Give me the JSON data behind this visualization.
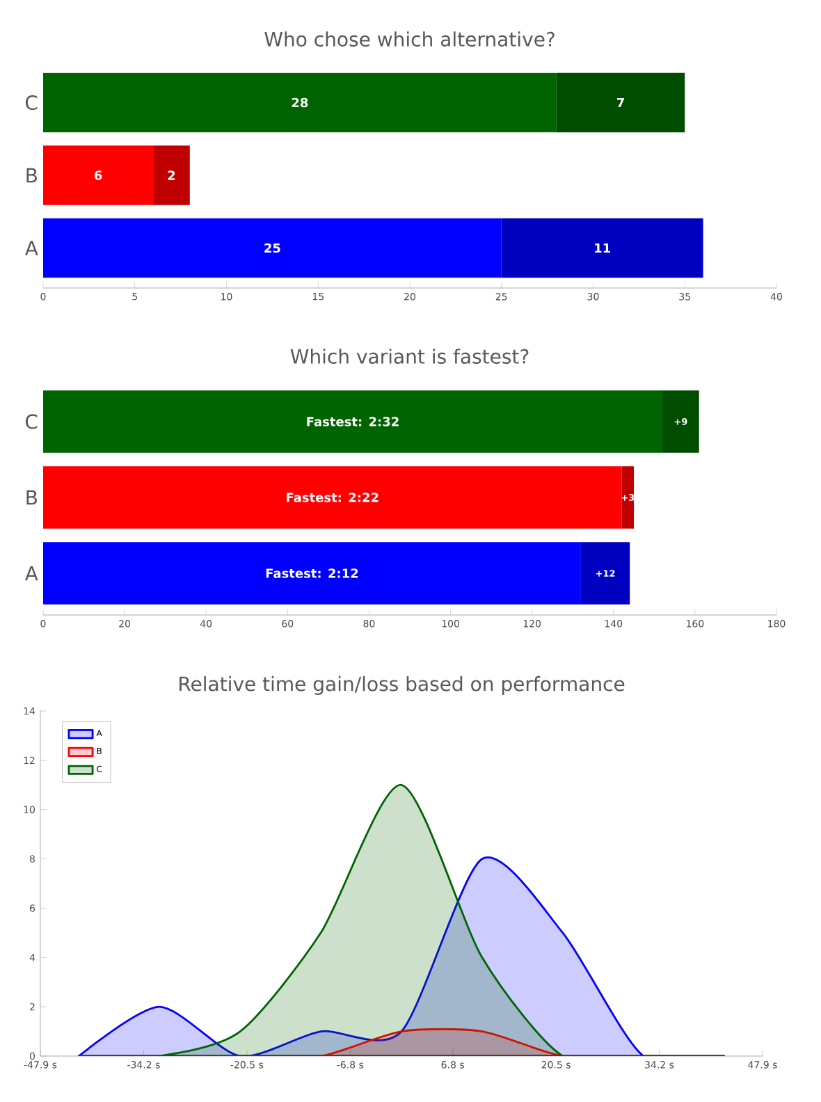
{
  "chart_data": [
    {
      "type": "bar",
      "title": "Who chose which alternative?",
      "orientation": "horizontal",
      "stacked": true,
      "data_labels": true,
      "categories": [
        "C",
        "B",
        "A"
      ],
      "series": [
        {
          "colors": [
            "#006400",
            "#ff0000",
            "#0000ff"
          ],
          "values": [
            28,
            6,
            25
          ]
        },
        {
          "colors": [
            "#004d00",
            "#c00000",
            "#0000c0"
          ],
          "values": [
            7,
            2,
            11
          ]
        }
      ],
      "xlim": [
        0,
        40
      ],
      "xticks": [
        0,
        5,
        10,
        15,
        20,
        25,
        30,
        35,
        40
      ]
    },
    {
      "type": "bar",
      "title": "Which variant is fastest?",
      "orientation": "horizontal",
      "stacked": true,
      "categories": [
        "C",
        "B",
        "A"
      ],
      "series": [
        {
          "colors": [
            "#006400",
            "#ff0000",
            "#0000ff"
          ],
          "values": [
            152,
            142,
            132
          ],
          "value_labels": [
            "Fastest: 2:32",
            "Fastest: 2:22",
            "Fastest: 2:12"
          ]
        },
        {
          "colors": [
            "#004d00",
            "#c00000",
            "#0000c0"
          ],
          "values": [
            9,
            3,
            12
          ],
          "value_labels": [
            "+9",
            "+3",
            "+12"
          ]
        }
      ],
      "xlim": [
        0,
        180
      ],
      "xticks": [
        0,
        20,
        40,
        60,
        80,
        100,
        120,
        140,
        160,
        180
      ]
    },
    {
      "type": "area",
      "title": "Relative time gain/loss based on performance",
      "legend": "top left",
      "marker": "none",
      "x": [
        -42.8,
        -32.1,
        -21.4,
        -10.7,
        0,
        10.7,
        21.4,
        32.1,
        42.8
      ],
      "series": [
        {
          "name": "A",
          "color": "#0000ff",
          "values": [
            0,
            2,
            0,
            1,
            1,
            8,
            5,
            0,
            0
          ]
        },
        {
          "name": "B",
          "color": "#ff0000",
          "values": [
            0,
            0,
            0,
            0,
            1,
            1,
            0,
            0,
            0
          ]
        },
        {
          "name": "C",
          "color": "#006400",
          "values": [
            0,
            0,
            1,
            5,
            11,
            4,
            0,
            0,
            0
          ]
        }
      ],
      "xlim": [
        -47.9,
        47.9
      ],
      "xticks": [
        {
          "value": -47.9,
          "label": "-47.9 s"
        },
        {
          "value": -34.2,
          "label": "-34.2 s"
        },
        {
          "value": -20.5,
          "label": "-20.5 s"
        },
        {
          "value": -6.8,
          "label": "-6.8 s"
        },
        {
          "value": 6.8,
          "label": "6.8 s"
        },
        {
          "value": 20.5,
          "label": "20.5 s"
        },
        {
          "value": 34.2,
          "label": "34.2 s"
        },
        {
          "value": 47.9,
          "label": "47.9 s"
        }
      ],
      "ylim": [
        0,
        14
      ],
      "yticks": [
        0,
        2,
        4,
        6,
        8,
        10,
        12,
        14
      ]
    }
  ]
}
